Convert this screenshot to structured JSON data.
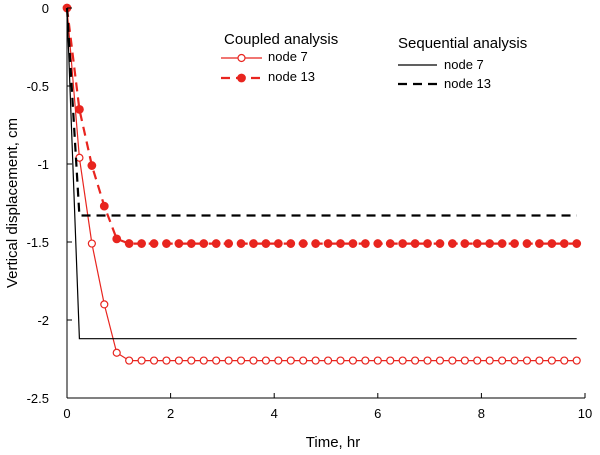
{
  "chart_data": {
    "type": "line",
    "title": "",
    "xlabel": "Time, hr",
    "ylabel": "Vertical displacement, cm",
    "xlim": [
      0,
      10
    ],
    "ylim": [
      -2.5,
      0
    ],
    "xticks": [
      0,
      2,
      4,
      6,
      8,
      10
    ],
    "yticks": [
      0,
      -0.5,
      -1,
      -1.5,
      -2,
      -2.5
    ],
    "xtick_labels": [
      "0",
      "2",
      "4",
      "6",
      "8",
      "10"
    ],
    "ytick_labels": [
      "0",
      "-0.5",
      "-1",
      "-1.5",
      "-2",
      "-2.5"
    ],
    "grid": false,
    "legend": {
      "groups": [
        {
          "title": "Coupled analysis",
          "placement": "top-center"
        },
        {
          "title": "Sequential analysis",
          "placement": "top-right"
        }
      ]
    },
    "series": [
      {
        "name": "node 7",
        "group": "Coupled analysis",
        "color": "#e8251f",
        "line": "solid",
        "marker": "open-circle",
        "x": [
          0,
          0.24,
          0.48,
          0.72,
          0.96,
          1.2,
          1.44,
          1.68,
          1.92,
          2.16,
          2.4,
          2.64,
          2.88,
          3.12,
          3.36,
          3.6,
          3.84,
          4.08,
          4.32,
          4.56,
          4.8,
          5.04,
          5.28,
          5.52,
          5.76,
          6.0,
          6.24,
          6.48,
          6.72,
          6.96,
          7.2,
          7.44,
          7.68,
          7.92,
          8.16,
          8.4,
          8.64,
          8.88,
          9.12,
          9.36,
          9.6,
          9.84
        ],
        "y": [
          0,
          -0.96,
          -1.51,
          -1.9,
          -2.21,
          -2.26,
          -2.26,
          -2.26,
          -2.26,
          -2.26,
          -2.26,
          -2.26,
          -2.26,
          -2.26,
          -2.26,
          -2.26,
          -2.26,
          -2.26,
          -2.26,
          -2.26,
          -2.26,
          -2.26,
          -2.26,
          -2.26,
          -2.26,
          -2.26,
          -2.26,
          -2.26,
          -2.26,
          -2.26,
          -2.26,
          -2.26,
          -2.26,
          -2.26,
          -2.26,
          -2.26,
          -2.26,
          -2.26,
          -2.26,
          -2.26,
          -2.26,
          -2.26
        ]
      },
      {
        "name": "node 13",
        "group": "Coupled analysis",
        "color": "#e8251f",
        "line": "dashed",
        "marker": "filled-circle",
        "x": [
          0,
          0.24,
          0.48,
          0.72,
          0.96,
          1.2,
          1.44,
          1.68,
          1.92,
          2.16,
          2.4,
          2.64,
          2.88,
          3.12,
          3.36,
          3.6,
          3.84,
          4.08,
          4.32,
          4.56,
          4.8,
          5.04,
          5.28,
          5.52,
          5.76,
          6.0,
          6.24,
          6.48,
          6.72,
          6.96,
          7.2,
          7.44,
          7.68,
          7.92,
          8.16,
          8.4,
          8.64,
          8.88,
          9.12,
          9.36,
          9.6,
          9.84
        ],
        "y": [
          0,
          -0.65,
          -1.01,
          -1.27,
          -1.48,
          -1.51,
          -1.51,
          -1.51,
          -1.51,
          -1.51,
          -1.51,
          -1.51,
          -1.51,
          -1.51,
          -1.51,
          -1.51,
          -1.51,
          -1.51,
          -1.51,
          -1.51,
          -1.51,
          -1.51,
          -1.51,
          -1.51,
          -1.51,
          -1.51,
          -1.51,
          -1.51,
          -1.51,
          -1.51,
          -1.51,
          -1.51,
          -1.51,
          -1.51,
          -1.51,
          -1.51,
          -1.51,
          -1.51,
          -1.51,
          -1.51,
          -1.51,
          -1.51
        ]
      },
      {
        "name": "node 7",
        "group": "Sequential analysis",
        "color": "#000000",
        "line": "solid",
        "marker": "none",
        "x": [
          0,
          0.24,
          9.84
        ],
        "y": [
          0,
          -2.12,
          -2.12
        ]
      },
      {
        "name": "node 13",
        "group": "Sequential analysis",
        "color": "#000000",
        "line": "dashed",
        "marker": "none",
        "x": [
          0,
          0.24,
          9.84
        ],
        "y": [
          0,
          -1.33,
          -1.33
        ]
      }
    ]
  }
}
